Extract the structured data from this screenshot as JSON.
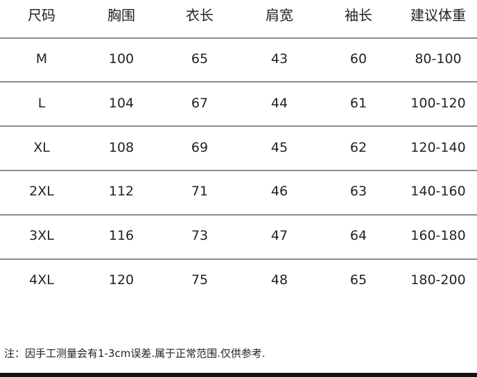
{
  "table": {
    "headers": [
      "尺码",
      "胸围",
      "衣长",
      "肩宽",
      "袖长",
      "建议体重"
    ],
    "rows": [
      [
        "M",
        "100",
        "65",
        "43",
        "60",
        "80-100"
      ],
      [
        "L",
        "104",
        "67",
        "44",
        "61",
        "100-120"
      ],
      [
        "XL",
        "108",
        "69",
        "45",
        "62",
        "120-140"
      ],
      [
        "2XL",
        "112",
        "71",
        "46",
        "63",
        "140-160"
      ],
      [
        "3XL",
        "116",
        "73",
        "47",
        "64",
        "160-180"
      ],
      [
        "4XL",
        "120",
        "75",
        "48",
        "65",
        "180-200"
      ]
    ]
  },
  "note": "注：因手工测量会有1-3cm误差.属于正常范围.仅供参考."
}
